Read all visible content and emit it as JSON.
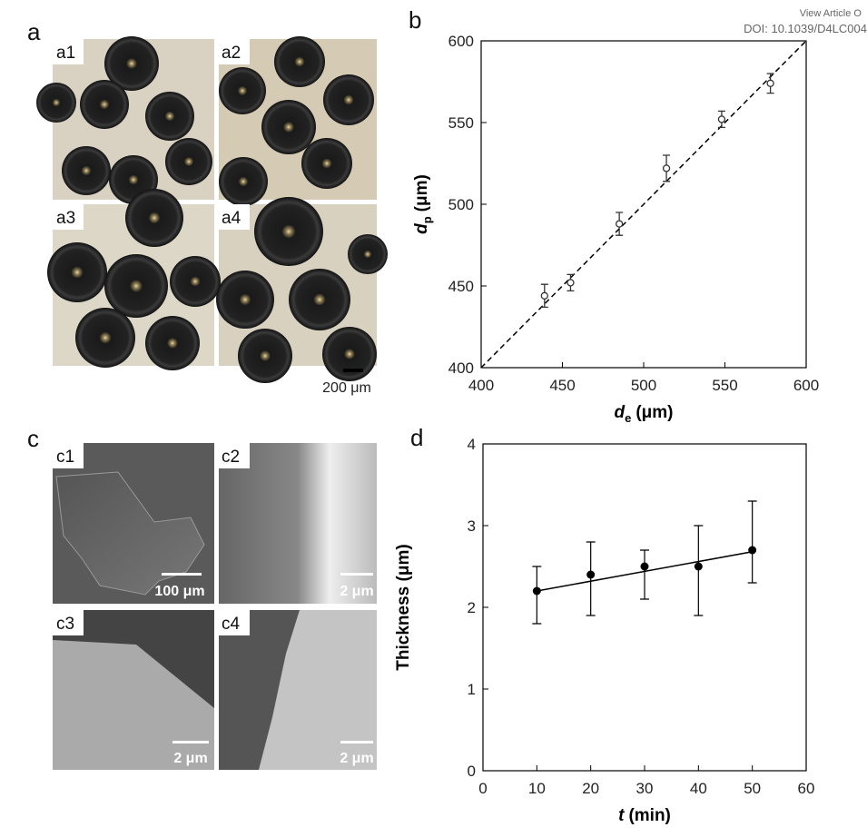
{
  "header": {
    "link": "View Article O",
    "doi": "DOI: 10.1039/D4LC004"
  },
  "panels": {
    "a": {
      "label": "a",
      "subpanels": [
        "a1",
        "a2",
        "a3",
        "a4"
      ],
      "scale_bar": "200 μm"
    },
    "c": {
      "label": "c",
      "subpanels": [
        "c1",
        "c2",
        "c3",
        "c4"
      ],
      "scale_bars": [
        "100 μm",
        "2 μm",
        "2 μm",
        "2 μm"
      ]
    }
  },
  "chart_data": [
    {
      "type": "scatter",
      "panel_label": "b",
      "x_label": {
        "symbol": "d",
        "subscript": "e",
        "unit": "(μm)"
      },
      "y_label": {
        "symbol": "d",
        "subscript": "p",
        "unit": "(μm)"
      },
      "x": [
        439,
        455,
        485,
        514,
        548,
        578
      ],
      "values": [
        444,
        452,
        488,
        522,
        552,
        574
      ],
      "errors": [
        7,
        5,
        7,
        8,
        5,
        6
      ],
      "color": "#333333",
      "reference_line": {
        "x": [
          400,
          600
        ],
        "values": [
          400,
          600
        ]
      },
      "xlim": [
        400,
        600
      ],
      "xticks": [
        400,
        450,
        500,
        550,
        600
      ],
      "ylim": [
        400,
        600
      ],
      "yticks": [
        400,
        450,
        500,
        550,
        600
      ]
    },
    {
      "type": "line",
      "panel_label": "d",
      "x_label": {
        "symbol": "t",
        "unit": "(min)"
      },
      "y_label": {
        "text": "Thickness (μm)"
      },
      "x": [
        10,
        20,
        30,
        40,
        50
      ],
      "values": [
        2.2,
        2.4,
        2.5,
        2.5,
        2.7
      ],
      "err_low": [
        1.8,
        1.9,
        2.1,
        1.9,
        2.3
      ],
      "err_high": [
        2.5,
        2.8,
        2.7,
        3.0,
        3.3
      ],
      "color": "#000000",
      "trendline": {
        "x": [
          10,
          50
        ],
        "values": [
          2.2,
          2.68
        ]
      },
      "xlim": [
        0,
        60
      ],
      "xticks": [
        0,
        10,
        20,
        30,
        40,
        50,
        60
      ],
      "ylim": [
        0,
        4
      ],
      "yticks": [
        0,
        1,
        2,
        3,
        4
      ]
    }
  ]
}
